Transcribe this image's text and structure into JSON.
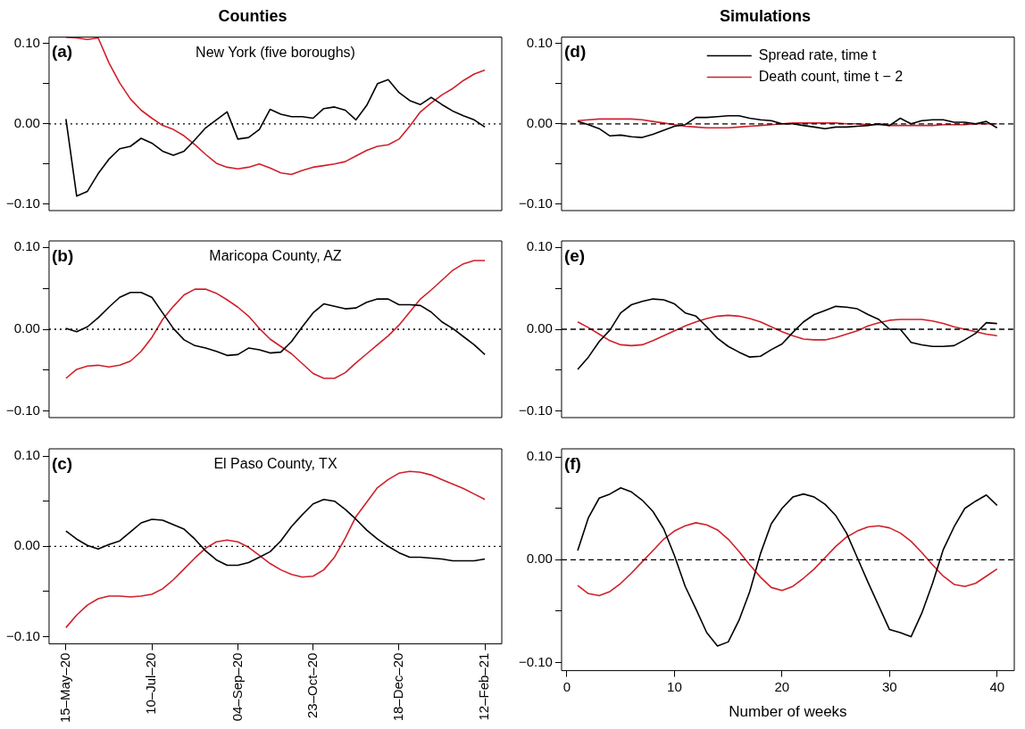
{
  "chart_data": [
    {
      "type": "line",
      "title": "Counties",
      "annotations": [
        "(a)",
        "New York (five boroughs)"
      ],
      "x": [
        "2020-05-15",
        "2020-05-22",
        "2020-05-29",
        "2020-06-05",
        "2020-06-12",
        "2020-06-19",
        "2020-06-26",
        "2020-07-03",
        "2020-07-10",
        "2020-07-17",
        "2020-07-24",
        "2020-07-31",
        "2020-08-07",
        "2020-08-14",
        "2020-08-21",
        "2020-08-28",
        "2020-09-04",
        "2020-09-11",
        "2020-09-18",
        "2020-09-25",
        "2020-10-02",
        "2020-10-09",
        "2020-10-16",
        "2020-10-23",
        "2020-10-30",
        "2020-11-06",
        "2020-11-13",
        "2020-11-20",
        "2020-11-27",
        "2020-12-04",
        "2020-12-11",
        "2020-12-18",
        "2020-12-25",
        "2021-01-01",
        "2021-01-08",
        "2021-01-15",
        "2021-01-22",
        "2021-01-29",
        "2021-02-05",
        "2021-02-12"
      ],
      "xlim": [
        "2020-05-04",
        "2021-02-23"
      ],
      "ylim": [
        -0.108,
        0.108
      ],
      "yticks": [
        {
          "value": -0.1,
          "label": "−0.10"
        },
        {
          "value": -0.05,
          "label": null
        },
        {
          "value": 0,
          "label": "0.00"
        },
        {
          "value": 0.05,
          "label": null
        },
        {
          "value": 0.1,
          "label": "0.10"
        }
      ],
      "tick_labels": "y",
      "ref_lines": [
        {
          "axis": "y",
          "value": 0,
          "color": "#000000",
          "line_style": "dotted"
        }
      ],
      "series": [
        {
          "color": "#000000",
          "values": [
            0.006,
            -0.09,
            -0.084,
            -0.062,
            -0.044,
            -0.031,
            -0.028,
            -0.018,
            -0.024,
            -0.034,
            -0.039,
            -0.034,
            -0.02,
            -0.005,
            0.005,
            0.015,
            -0.019,
            -0.017,
            -0.007,
            0.018,
            0.012,
            0.009,
            0.009,
            0.007,
            0.019,
            0.021,
            0.017,
            0.005,
            0.023,
            0.05,
            0.055,
            0.039,
            0.029,
            0.024,
            0.033,
            0.024,
            0.016,
            0.01,
            0.005,
            -0.004
          ]
        },
        {
          "color": "#d0202a",
          "values": [
            0.108,
            0.107,
            0.105,
            0.107,
            0.076,
            0.051,
            0.031,
            0.017,
            0.007,
            -0.002,
            -0.007,
            -0.015,
            -0.026,
            -0.038,
            -0.049,
            -0.054,
            -0.056,
            -0.054,
            -0.05,
            -0.055,
            -0.061,
            -0.063,
            -0.058,
            -0.054,
            -0.052,
            -0.05,
            -0.047,
            -0.04,
            -0.033,
            -0.028,
            -0.026,
            -0.019,
            -0.003,
            0.015,
            0.026,
            0.036,
            0.044,
            0.054,
            0.062,
            0.067
          ]
        }
      ]
    },
    {
      "type": "line",
      "title": "Simulations",
      "annotations": [
        "(d)"
      ],
      "legend": "top",
      "x": [
        1,
        2,
        3,
        4,
        5,
        6,
        7,
        8,
        9,
        10,
        11,
        12,
        13,
        14,
        15,
        16,
        17,
        18,
        19,
        20,
        21,
        22,
        23,
        24,
        25,
        26,
        27,
        28,
        29,
        30,
        31,
        32,
        33,
        34,
        35,
        36,
        37,
        38,
        39,
        40
      ],
      "xlim": [
        -0.5,
        41.6
      ],
      "ylim": [
        -0.108,
        0.108
      ],
      "yticks": [
        {
          "value": -0.1,
          "label": "−0.10"
        },
        {
          "value": -0.05,
          "label": null
        },
        {
          "value": 0,
          "label": "0.00"
        },
        {
          "value": 0.05,
          "label": null
        },
        {
          "value": 0.1,
          "label": "0.10"
        }
      ],
      "tick_labels": "y",
      "ref_lines": [
        {
          "axis": "y",
          "value": 0,
          "color": "#000000",
          "line_style": "dashed"
        }
      ],
      "series": [
        {
          "name": "Spread rate, time t",
          "color": "#000000",
          "values": [
            0.003,
            -0.001,
            -0.006,
            -0.015,
            -0.014,
            -0.016,
            -0.017,
            -0.013,
            -0.008,
            -0.003,
            -0.001,
            0.008,
            0.008,
            0.009,
            0.01,
            0.01,
            0.007,
            0.005,
            0.004,
            0.0,
            0.0,
            -0.002,
            -0.004,
            -0.006,
            -0.004,
            -0.004,
            -0.003,
            -0.002,
            0.0,
            -0.002,
            0.007,
            0.0,
            0.004,
            0.005,
            0.005,
            0.002,
            0.002,
            0.0,
            0.003,
            -0.005
          ]
        },
        {
          "name": "Death count, time t − 2",
          "color": "#d0202a",
          "values": [
            0.004,
            0.005,
            0.006,
            0.006,
            0.006,
            0.006,
            0.005,
            0.003,
            0.001,
            -0.001,
            -0.003,
            -0.004,
            -0.005,
            -0.005,
            -0.005,
            -0.004,
            -0.003,
            -0.002,
            -0.001,
            0.0,
            0.001,
            0.001,
            0.001,
            0.001,
            0.001,
            0.0,
            0.0,
            -0.001,
            -0.001,
            -0.002,
            -0.002,
            -0.002,
            -0.002,
            -0.002,
            -0.001,
            -0.001,
            -0.001,
            0.0,
            0.0,
            0.0
          ]
        }
      ]
    },
    {
      "type": "line",
      "annotations": [
        "(b)",
        "Maricopa County, AZ"
      ],
      "x": [
        "2020-05-15",
        "2020-05-22",
        "2020-05-29",
        "2020-06-05",
        "2020-06-12",
        "2020-06-19",
        "2020-06-26",
        "2020-07-03",
        "2020-07-10",
        "2020-07-17",
        "2020-07-24",
        "2020-07-31",
        "2020-08-07",
        "2020-08-14",
        "2020-08-21",
        "2020-08-28",
        "2020-09-04",
        "2020-09-11",
        "2020-09-18",
        "2020-09-25",
        "2020-10-02",
        "2020-10-09",
        "2020-10-16",
        "2020-10-23",
        "2020-10-30",
        "2020-11-06",
        "2020-11-13",
        "2020-11-20",
        "2020-11-27",
        "2020-12-04",
        "2020-12-11",
        "2020-12-18",
        "2020-12-25",
        "2021-01-01",
        "2021-01-08",
        "2021-01-15",
        "2021-01-22",
        "2021-01-29",
        "2021-02-05",
        "2021-02-12"
      ],
      "xlim": [
        "2020-05-04",
        "2021-02-23"
      ],
      "ylim": [
        -0.108,
        0.108
      ],
      "yticks": [
        {
          "value": -0.1,
          "label": "−0.10"
        },
        {
          "value": -0.05,
          "label": null
        },
        {
          "value": 0,
          "label": "0.00"
        },
        {
          "value": 0.05,
          "label": null
        },
        {
          "value": 0.1,
          "label": "0.10"
        }
      ],
      "tick_labels": "y",
      "ref_lines": [
        {
          "axis": "y",
          "value": 0,
          "color": "#000000",
          "line_style": "dotted"
        }
      ],
      "series": [
        {
          "color": "#000000",
          "values": [
            0.001,
            -0.003,
            0.003,
            0.014,
            0.027,
            0.039,
            0.045,
            0.045,
            0.039,
            0.02,
            0.001,
            -0.013,
            -0.02,
            -0.023,
            -0.027,
            -0.032,
            -0.031,
            -0.023,
            -0.025,
            -0.029,
            -0.028,
            -0.015,
            0.003,
            0.02,
            0.031,
            0.028,
            0.025,
            0.026,
            0.033,
            0.037,
            0.037,
            0.03,
            0.03,
            0.029,
            0.021,
            0.009,
            0.001,
            -0.009,
            -0.019,
            -0.031
          ]
        },
        {
          "color": "#d0202a",
          "values": [
            -0.06,
            -0.049,
            -0.045,
            -0.044,
            -0.046,
            -0.044,
            -0.039,
            -0.027,
            -0.01,
            0.012,
            0.028,
            0.042,
            0.049,
            0.049,
            0.044,
            0.036,
            0.027,
            0.016,
            0.001,
            -0.012,
            -0.021,
            -0.03,
            -0.042,
            -0.054,
            -0.06,
            -0.06,
            -0.053,
            -0.041,
            -0.03,
            -0.019,
            -0.008,
            0.005,
            0.021,
            0.037,
            0.048,
            0.06,
            0.072,
            0.08,
            0.084,
            0.084
          ]
        }
      ]
    },
    {
      "type": "line",
      "annotations": [
        "(e)"
      ],
      "x": [
        1,
        2,
        3,
        4,
        5,
        6,
        7,
        8,
        9,
        10,
        11,
        12,
        13,
        14,
        15,
        16,
        17,
        18,
        19,
        20,
        21,
        22,
        23,
        24,
        25,
        26,
        27,
        28,
        29,
        30,
        31,
        32,
        33,
        34,
        35,
        36,
        37,
        38,
        39,
        40
      ],
      "xlim": [
        -0.5,
        41.6
      ],
      "ylim": [
        -0.108,
        0.108
      ],
      "yticks": [
        {
          "value": -0.1,
          "label": "−0.10"
        },
        {
          "value": -0.05,
          "label": null
        },
        {
          "value": 0,
          "label": "0.00"
        },
        {
          "value": 0.05,
          "label": null
        },
        {
          "value": 0.1,
          "label": "0.10"
        }
      ],
      "tick_labels": "y",
      "ref_lines": [
        {
          "axis": "y",
          "value": 0,
          "color": "#000000",
          "line_style": "dashed"
        }
      ],
      "series": [
        {
          "color": "#000000",
          "values": [
            -0.049,
            -0.034,
            -0.015,
            -0.001,
            0.02,
            0.03,
            0.034,
            0.037,
            0.036,
            0.031,
            0.02,
            0.016,
            0.003,
            -0.011,
            -0.021,
            -0.028,
            -0.034,
            -0.033,
            -0.025,
            -0.018,
            -0.004,
            0.009,
            0.018,
            0.023,
            0.028,
            0.027,
            0.025,
            0.018,
            0.012,
            0.0,
            0.0,
            -0.016,
            -0.019,
            -0.021,
            -0.021,
            -0.02,
            -0.013,
            -0.005,
            0.008,
            0.007
          ]
        },
        {
          "color": "#d0202a",
          "values": [
            0.009,
            0.002,
            -0.006,
            -0.014,
            -0.019,
            -0.02,
            -0.019,
            -0.014,
            -0.008,
            -0.002,
            0.004,
            0.009,
            0.013,
            0.016,
            0.017,
            0.016,
            0.013,
            0.009,
            0.003,
            -0.003,
            -0.008,
            -0.012,
            -0.013,
            -0.013,
            -0.01,
            -0.006,
            -0.002,
            0.004,
            0.008,
            0.011,
            0.012,
            0.012,
            0.012,
            0.01,
            0.007,
            0.003,
            0.0,
            -0.003,
            -0.006,
            -0.008
          ]
        }
      ]
    },
    {
      "type": "line",
      "annotations": [
        "(c)",
        "El Paso County, TX"
      ],
      "x": [
        "2020-05-15",
        "2020-05-22",
        "2020-05-29",
        "2020-06-05",
        "2020-06-12",
        "2020-06-19",
        "2020-06-26",
        "2020-07-03",
        "2020-07-10",
        "2020-07-17",
        "2020-07-24",
        "2020-07-31",
        "2020-08-07",
        "2020-08-14",
        "2020-08-21",
        "2020-08-28",
        "2020-09-04",
        "2020-09-11",
        "2020-09-18",
        "2020-09-25",
        "2020-10-02",
        "2020-10-09",
        "2020-10-16",
        "2020-10-23",
        "2020-10-30",
        "2020-11-06",
        "2020-11-13",
        "2020-11-20",
        "2020-11-27",
        "2020-12-04",
        "2020-12-11",
        "2020-12-18",
        "2020-12-25",
        "2021-01-01",
        "2021-01-08",
        "2021-01-15",
        "2021-01-22",
        "2021-01-29",
        "2021-02-05",
        "2021-02-12"
      ],
      "xlim": [
        "2020-05-04",
        "2021-02-23"
      ],
      "ylim": [
        -0.108,
        0.108
      ],
      "xticks": [
        {
          "value": "2020-05-15",
          "label": "15–May–20"
        },
        {
          "value": "2020-07-10",
          "label": "10–Jul–20"
        },
        {
          "value": "2020-09-04",
          "label": "04–Sep–20"
        },
        {
          "value": "2020-10-23",
          "label": "23–Oct–20"
        },
        {
          "value": "2020-12-18",
          "label": "18–Dec–20"
        },
        {
          "value": "2021-02-12",
          "label": "12–Feb–21"
        }
      ],
      "yticks": [
        {
          "value": -0.1,
          "label": "−0.10"
        },
        {
          "value": -0.05,
          "label": null
        },
        {
          "value": 0,
          "label": "0.00"
        },
        {
          "value": 0.05,
          "label": null
        },
        {
          "value": 0.1,
          "label": "0.10"
        }
      ],
      "ref_lines": [
        {
          "axis": "y",
          "value": 0,
          "color": "#000000",
          "line_style": "dotted"
        }
      ],
      "series": [
        {
          "color": "#000000",
          "values": [
            0.017,
            0.008,
            0.001,
            -0.003,
            0.002,
            0.006,
            0.016,
            0.026,
            0.03,
            0.029,
            0.024,
            0.019,
            0.008,
            -0.005,
            -0.015,
            -0.021,
            -0.021,
            -0.018,
            -0.012,
            -0.006,
            0.006,
            0.022,
            0.035,
            0.047,
            0.052,
            0.05,
            0.041,
            0.03,
            0.018,
            0.008,
            0.0,
            -0.007,
            -0.012,
            -0.012,
            -0.013,
            -0.014,
            -0.016,
            -0.016,
            -0.016,
            -0.014
          ]
        },
        {
          "color": "#d0202a",
          "values": [
            -0.09,
            -0.076,
            -0.065,
            -0.058,
            -0.055,
            -0.055,
            -0.056,
            -0.055,
            -0.053,
            -0.047,
            -0.037,
            -0.025,
            -0.013,
            -0.002,
            0.005,
            0.007,
            0.005,
            -0.001,
            -0.01,
            -0.019,
            -0.026,
            -0.031,
            -0.034,
            -0.033,
            -0.026,
            -0.012,
            0.009,
            0.033,
            0.049,
            0.065,
            0.074,
            0.081,
            0.083,
            0.082,
            0.079,
            0.074,
            0.069,
            0.064,
            0.058,
            0.052
          ]
        }
      ]
    },
    {
      "type": "line",
      "annotations": [
        "(f)"
      ],
      "xlabel": "Number of weeks",
      "x": [
        1,
        2,
        3,
        4,
        5,
        6,
        7,
        8,
        9,
        10,
        11,
        12,
        13,
        14,
        15,
        16,
        17,
        18,
        19,
        20,
        21,
        22,
        23,
        24,
        25,
        26,
        27,
        28,
        29,
        30,
        31,
        32,
        33,
        34,
        35,
        36,
        37,
        38,
        39,
        40
      ],
      "xlim": [
        -0.5,
        41.6
      ],
      "ylim": [
        -0.108,
        0.108
      ],
      "xticks": [
        0,
        10,
        20,
        30,
        40
      ],
      "yticks": [
        {
          "value": -0.1,
          "label": "−0.10"
        },
        {
          "value": -0.05,
          "label": null
        },
        {
          "value": 0,
          "label": "0.00"
        },
        {
          "value": 0.05,
          "label": null
        },
        {
          "value": 0.1,
          "label": "0.10"
        }
      ],
      "ref_lines": [
        {
          "axis": "y",
          "value": 0,
          "color": "#000000",
          "line_style": "dashed"
        }
      ],
      "series": [
        {
          "color": "#000000",
          "values": [
            0.009,
            0.041,
            0.06,
            0.064,
            0.07,
            0.066,
            0.058,
            0.047,
            0.03,
            0.004,
            -0.026,
            -0.048,
            -0.071,
            -0.084,
            -0.08,
            -0.059,
            -0.031,
            0.006,
            0.035,
            0.05,
            0.061,
            0.064,
            0.061,
            0.054,
            0.043,
            0.026,
            0.002,
            -0.022,
            -0.045,
            -0.068,
            -0.071,
            -0.075,
            -0.052,
            -0.023,
            0.01,
            0.032,
            0.05,
            0.057,
            0.063,
            0.053
          ]
        },
        {
          "color": "#d0202a",
          "values": [
            -0.025,
            -0.033,
            -0.035,
            -0.031,
            -0.023,
            -0.013,
            -0.002,
            0.009,
            0.02,
            0.028,
            0.033,
            0.036,
            0.034,
            0.029,
            0.02,
            0.008,
            -0.005,
            -0.017,
            -0.027,
            -0.03,
            -0.026,
            -0.018,
            -0.009,
            0.002,
            0.013,
            0.022,
            0.028,
            0.032,
            0.033,
            0.031,
            0.026,
            0.018,
            0.007,
            -0.005,
            -0.016,
            -0.024,
            -0.026,
            -0.023,
            -0.016,
            -0.009
          ]
        }
      ]
    }
  ]
}
